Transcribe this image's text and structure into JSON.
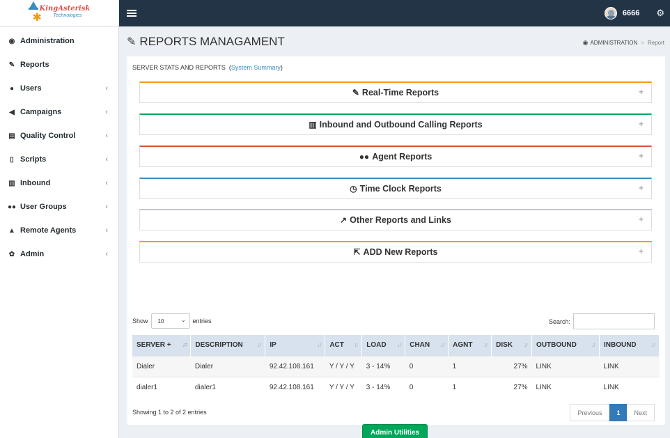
{
  "brand": {
    "name": "KingAsterisk",
    "tagline": "Technologies"
  },
  "topbar": {
    "user": "6666"
  },
  "sidebar": {
    "items": [
      {
        "label": "Administration",
        "icon": "dashboard-icon",
        "chevron": false
      },
      {
        "label": "Reports",
        "icon": "edit-icon",
        "chevron": false
      },
      {
        "label": "Users",
        "icon": "user-icon",
        "chevron": true
      },
      {
        "label": "Campaigns",
        "icon": "bullhorn-icon",
        "chevron": true
      },
      {
        "label": "Quality Control",
        "icon": "list-icon",
        "chevron": true
      },
      {
        "label": "Scripts",
        "icon": "file-icon",
        "chevron": true
      },
      {
        "label": "Inbound",
        "icon": "bar-chart-icon",
        "chevron": true
      },
      {
        "label": "User Groups",
        "icon": "users-icon",
        "chevron": true
      },
      {
        "label": "Remote Agents",
        "icon": "lock-user-icon",
        "chevron": true
      },
      {
        "label": "Admin",
        "icon": "gear-icon",
        "chevron": true
      }
    ]
  },
  "page": {
    "title": "REPORTS MANAGAMENT",
    "breadcrumb": {
      "root": "ADMINISTRATION",
      "current": "Report"
    },
    "server_stats_label": "SERVER STATS AND REPORTS",
    "server_stats_link": "System Summary"
  },
  "panels": [
    {
      "title": "Real-Time Reports",
      "icon": "edit-icon",
      "color": "#f39c12"
    },
    {
      "title": "Inbound and Outbound Calling Reports",
      "icon": "bar-chart-icon",
      "color": "#00a65a"
    },
    {
      "title": "Agent Reports",
      "icon": "users-icon",
      "color": "#dd4b39"
    },
    {
      "title": "Time Clock Reports",
      "icon": "clock-icon",
      "color": "#3c8dbc"
    },
    {
      "title": "Other Reports and Links",
      "icon": "line-chart-icon",
      "color": "#c3c3d9"
    },
    {
      "title": "ADD New Reports",
      "icon": "external-link-icon",
      "color": "#f39c12"
    }
  ],
  "table": {
    "show_label": "Show",
    "entries_label": "entries",
    "page_size": "10",
    "search_label": "Search:",
    "columns": [
      "SERVER +",
      "DESCRIPTION",
      "IP",
      "ACT",
      "LOAD",
      "CHAN",
      "AGNT",
      "DISK",
      "OUTBOUND",
      "INBOUND"
    ],
    "rows": [
      [
        "Dialer",
        "Dialer",
        "92.42.108.161",
        "Y / Y / Y",
        "3 - 14%",
        "0",
        "1",
        "27%",
        "LINK",
        "LINK"
      ],
      [
        "dialer1",
        "dialer1",
        "92.42.108.161",
        "Y / Y / Y",
        "3 - 14%",
        "0",
        "1",
        "27%",
        "LINK",
        "LINK"
      ]
    ],
    "showing": "Showing 1 to 2 of 2 entries",
    "pagination": {
      "prev": "Previous",
      "current": "1",
      "next": "Next"
    }
  },
  "admin_button": "Admin Utilities"
}
